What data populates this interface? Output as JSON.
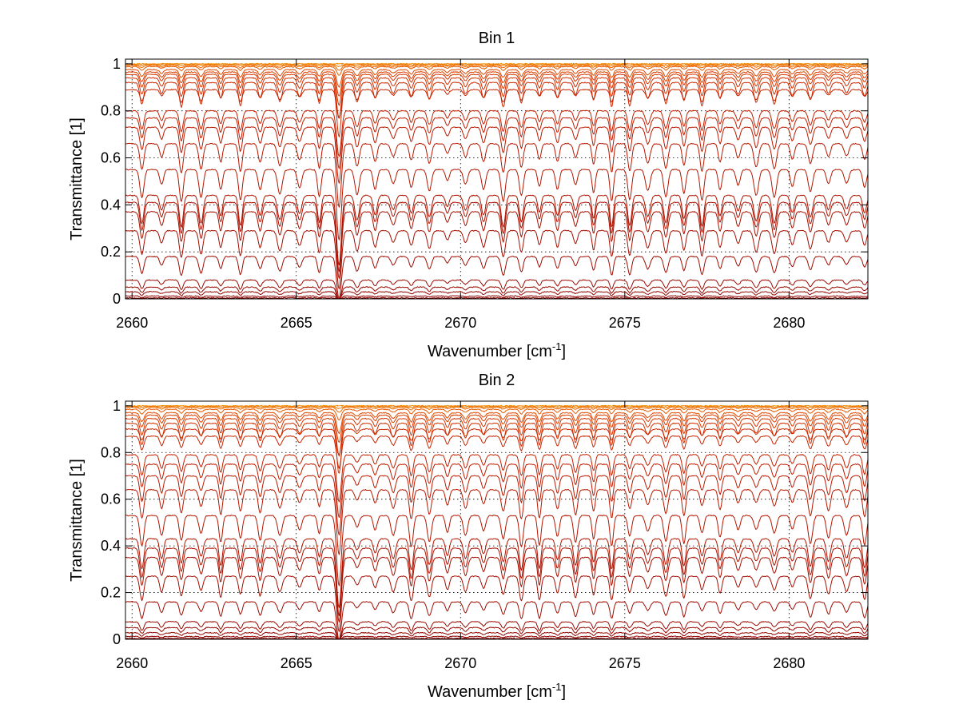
{
  "chart_data": [
    {
      "type": "line",
      "title": "Bin 1",
      "xlabel": "Wavenumber [cm",
      "xlabel_sup": "-1",
      "xlabel_close": "]",
      "ylabel": "Transmittance [1]",
      "xlim": [
        2659.8,
        2682.4
      ],
      "ylim": [
        0,
        1.02
      ],
      "xticks": [
        2660,
        2665,
        2670,
        2675,
        2680
      ],
      "yticks": [
        0,
        0.2,
        0.4,
        0.6,
        0.8,
        1
      ],
      "ytick_labels": [
        "0",
        "0.2",
        "0.4",
        "0.6",
        "0.8",
        "1"
      ],
      "grid": true,
      "series": [
        {
          "base": 1.0,
          "color": "#f28c00"
        },
        {
          "base": 0.997,
          "color": "#f07a00"
        },
        {
          "base": 0.993,
          "color": "#ee6a00"
        },
        {
          "base": 0.988,
          "color": "#e85a00"
        },
        {
          "base": 0.975,
          "color": "#e24a00"
        },
        {
          "base": 0.965,
          "color": "#dc3e00"
        },
        {
          "base": 0.955,
          "color": "#d83600"
        },
        {
          "base": 0.94,
          "color": "#d23000"
        },
        {
          "base": 0.92,
          "color": "#cc2a00"
        },
        {
          "base": 0.89,
          "color": "#c82400"
        },
        {
          "base": 0.8,
          "color": "#c42000"
        },
        {
          "base": 0.77,
          "color": "#c01c00"
        },
        {
          "base": 0.73,
          "color": "#bc1a00"
        },
        {
          "base": 0.66,
          "color": "#b81800"
        },
        {
          "base": 0.55,
          "color": "#b41600"
        },
        {
          "base": 0.44,
          "color": "#b01400"
        },
        {
          "base": 0.41,
          "color": "#ac1200"
        },
        {
          "base": 0.37,
          "color": "#a81000"
        },
        {
          "base": 0.29,
          "color": "#a40e00"
        },
        {
          "base": 0.18,
          "color": "#a00c00"
        },
        {
          "base": 0.08,
          "color": "#9c0a00"
        },
        {
          "base": 0.05,
          "color": "#980800"
        },
        {
          "base": 0.03,
          "color": "#940600"
        },
        {
          "base": 0.012,
          "color": "#900400"
        },
        {
          "base": 0.004,
          "color": "#8a0200"
        },
        {
          "base": 0.0,
          "color": "#800000"
        }
      ]
    },
    {
      "type": "line",
      "title": "Bin 2",
      "xlabel": "Wavenumber [cm",
      "xlabel_sup": "-1",
      "xlabel_close": "]",
      "ylabel": "Transmittance [1]",
      "xlim": [
        2659.8,
        2682.4
      ],
      "ylim": [
        0,
        1.02
      ],
      "xticks": [
        2660,
        2665,
        2670,
        2675,
        2680
      ],
      "yticks": [
        0,
        0.2,
        0.4,
        0.6,
        0.8,
        1
      ],
      "ytick_labels": [
        "0",
        "0.2",
        "0.4",
        "0.6",
        "0.8",
        "1"
      ],
      "grid": true,
      "series": [
        {
          "base": 1.0,
          "color": "#f28c00"
        },
        {
          "base": 0.997,
          "color": "#f07a00"
        },
        {
          "base": 0.993,
          "color": "#ee6a00"
        },
        {
          "base": 0.985,
          "color": "#e85a00"
        },
        {
          "base": 0.97,
          "color": "#e24a00"
        },
        {
          "base": 0.96,
          "color": "#dc3e00"
        },
        {
          "base": 0.945,
          "color": "#d83600"
        },
        {
          "base": 0.925,
          "color": "#d23000"
        },
        {
          "base": 0.9,
          "color": "#cc2a00"
        },
        {
          "base": 0.87,
          "color": "#c82400"
        },
        {
          "base": 0.79,
          "color": "#c42000"
        },
        {
          "base": 0.75,
          "color": "#c01c00"
        },
        {
          "base": 0.7,
          "color": "#bc1a00"
        },
        {
          "base": 0.64,
          "color": "#b81800"
        },
        {
          "base": 0.53,
          "color": "#b41600"
        },
        {
          "base": 0.43,
          "color": "#b01400"
        },
        {
          "base": 0.39,
          "color": "#ac1200"
        },
        {
          "base": 0.35,
          "color": "#a81000"
        },
        {
          "base": 0.27,
          "color": "#a40e00"
        },
        {
          "base": 0.16,
          "color": "#a00c00"
        },
        {
          "base": 0.075,
          "color": "#9c0a00"
        },
        {
          "base": 0.05,
          "color": "#980800"
        },
        {
          "base": 0.028,
          "color": "#940600"
        },
        {
          "base": 0.012,
          "color": "#900400"
        },
        {
          "base": 0.004,
          "color": "#8a0200"
        },
        {
          "base": 0.0,
          "color": "#800000"
        }
      ]
    }
  ]
}
